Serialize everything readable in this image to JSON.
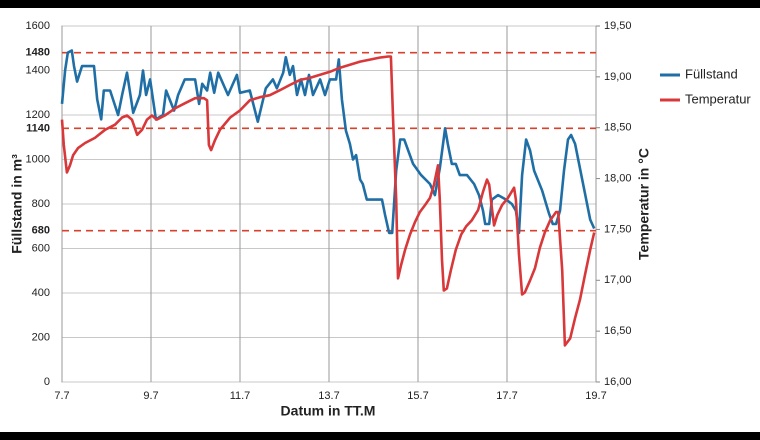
{
  "chart_data": {
    "type": "line",
    "x_label": "Datum in TT.M",
    "y_label": "Füllstand in m³",
    "y2_label": "Temperatur in °C",
    "xlim": [
      7,
      19
    ],
    "xticks": [
      {
        "value": 7,
        "label": "7.7"
      },
      {
        "value": 9,
        "label": "9.7"
      },
      {
        "value": 11,
        "label": "11.7"
      },
      {
        "value": 13,
        "label": "13.7"
      },
      {
        "value": 15,
        "label": "15.7"
      },
      {
        "value": 17,
        "label": "17.7"
      },
      {
        "value": 19,
        "label": "19.7"
      }
    ],
    "ylim": [
      0,
      1600
    ],
    "yticks": [
      0,
      200,
      400,
      600,
      800,
      1000,
      1200,
      1400,
      1600
    ],
    "y2lim": [
      16,
      19.5
    ],
    "y2ticks": [
      {
        "value": 16,
        "label": "16,00"
      },
      {
        "value": 16.5,
        "label": "16,50"
      },
      {
        "value": 17,
        "label": "17,00"
      },
      {
        "value": 17.5,
        "label": "17,50"
      },
      {
        "value": 18,
        "label": "18,00"
      },
      {
        "value": 18.5,
        "label": "18,50"
      },
      {
        "value": 19,
        "label": "19,00"
      },
      {
        "value": 19.5,
        "label": "19,50"
      }
    ],
    "reference_lines": [
      680,
      1140,
      1480
    ],
    "reference_color": "#d9412b",
    "grid": true,
    "legend": "right",
    "series": [
      {
        "name": "Füllstand",
        "color": "#1f6fa6",
        "x": [
          7.0,
          7.07,
          7.13,
          7.22,
          7.27,
          7.34,
          7.45,
          7.72,
          7.79,
          7.88,
          7.94,
          8.08,
          8.26,
          8.35,
          8.46,
          8.6,
          8.75,
          8.82,
          8.89,
          8.98,
          9.11,
          9.27,
          9.34,
          9.52,
          9.61,
          9.76,
          9.99,
          10.08,
          10.15,
          10.26,
          10.33,
          10.42,
          10.51,
          10.73,
          10.93,
          11.0,
          11.22,
          11.4,
          11.58,
          11.74,
          11.83,
          11.97,
          12.03,
          12.12,
          12.19,
          12.28,
          12.37,
          12.46,
          12.55,
          12.64,
          12.8,
          12.91,
          13.02,
          13.16,
          13.22,
          13.29,
          13.38,
          13.47,
          13.54,
          13.61,
          13.7,
          13.76,
          13.85,
          14.06,
          14.19,
          14.26,
          14.35,
          14.42,
          14.51,
          14.6,
          14.69,
          14.89,
          15.07,
          15.27,
          15.38,
          15.49,
          15.61,
          15.67,
          15.76,
          15.85,
          15.94,
          16.1,
          16.26,
          16.37,
          16.46,
          16.51,
          16.6,
          16.66,
          16.8,
          16.98,
          17.11,
          17.2,
          17.27,
          17.34,
          17.43,
          17.52,
          17.61,
          17.79,
          17.94,
          18.03,
          18.1,
          18.19,
          18.28,
          18.37,
          18.44,
          18.53,
          18.69,
          18.87,
          18.96
        ],
        "values": [
          1250,
          1400,
          1480,
          1490,
          1420,
          1350,
          1420,
          1420,
          1270,
          1180,
          1310,
          1310,
          1200,
          1290,
          1390,
          1210,
          1290,
          1400,
          1290,
          1360,
          1180,
          1200,
          1310,
          1220,
          1290,
          1360,
          1360,
          1250,
          1340,
          1310,
          1390,
          1300,
          1390,
          1290,
          1380,
          1300,
          1310,
          1170,
          1320,
          1360,
          1320,
          1390,
          1460,
          1380,
          1420,
          1290,
          1360,
          1290,
          1380,
          1290,
          1360,
          1290,
          1360,
          1360,
          1450,
          1270,
          1130,
          1070,
          1000,
          1020,
          910,
          890,
          820,
          820,
          820,
          750,
          670,
          670,
          950,
          1090,
          1090,
          980,
          930,
          890,
          840,
          960,
          1140,
          1070,
          980,
          980,
          930,
          930,
          890,
          840,
          770,
          710,
          710,
          820,
          840,
          820,
          800,
          770,
          670,
          930,
          1090,
          1040,
          950,
          860,
          760,
          710,
          710,
          770,
          950,
          1090,
          1110,
          1070,
          910,
          730,
          690
        ]
      },
      {
        "name": "Temperatur",
        "color": "#d9383a",
        "axis": "y2",
        "x": [
          7.0,
          7.04,
          7.11,
          7.18,
          7.25,
          7.36,
          7.52,
          7.74,
          7.97,
          8.19,
          8.35,
          8.46,
          8.57,
          8.69,
          8.8,
          8.91,
          9.02,
          9.13,
          9.31,
          9.54,
          9.76,
          9.99,
          10.19,
          10.26,
          10.3,
          10.35,
          10.44,
          10.55,
          10.78,
          11.0,
          11.22,
          11.45,
          11.67,
          11.9,
          12.12,
          12.35,
          12.57,
          12.8,
          13.02,
          13.25,
          13.47,
          13.7,
          13.92,
          14.15,
          14.33,
          14.39,
          14.44,
          14.51,
          14.55,
          14.62,
          14.71,
          14.82,
          14.93,
          15.04,
          15.16,
          15.27,
          15.36,
          15.45,
          15.49,
          15.54,
          15.58,
          15.65,
          15.74,
          15.85,
          15.97,
          16.08,
          16.21,
          16.35,
          16.46,
          16.55,
          16.6,
          16.66,
          16.71,
          16.78,
          16.89,
          17.02,
          17.16,
          17.2,
          17.27,
          17.34,
          17.4,
          17.52,
          17.63,
          17.74,
          17.85,
          17.97,
          18.1,
          18.15,
          18.24,
          18.3,
          18.42,
          18.53,
          18.64,
          18.75,
          18.87,
          18.96
        ],
        "values": [
          18.58,
          18.33,
          18.06,
          18.13,
          18.23,
          18.3,
          18.35,
          18.4,
          18.48,
          18.53,
          18.6,
          18.62,
          18.58,
          18.43,
          18.48,
          18.58,
          18.62,
          18.58,
          18.62,
          18.69,
          18.74,
          18.79,
          18.79,
          18.77,
          18.33,
          18.28,
          18.38,
          18.48,
          18.6,
          18.67,
          18.77,
          18.8,
          18.82,
          18.87,
          18.92,
          18.97,
          18.99,
          19.02,
          19.05,
          19.09,
          19.12,
          19.15,
          19.17,
          19.19,
          19.2,
          19.2,
          18.58,
          17.79,
          17.02,
          17.15,
          17.3,
          17.45,
          17.57,
          17.67,
          17.74,
          17.81,
          17.94,
          18.13,
          17.79,
          17.2,
          16.9,
          16.92,
          17.1,
          17.3,
          17.45,
          17.53,
          17.59,
          17.69,
          17.87,
          17.99,
          17.94,
          17.71,
          17.54,
          17.64,
          17.74,
          17.81,
          17.91,
          17.79,
          17.25,
          16.86,
          16.88,
          17.0,
          17.12,
          17.32,
          17.47,
          17.59,
          17.67,
          17.67,
          17.1,
          16.36,
          16.43,
          16.63,
          16.81,
          17.05,
          17.3,
          17.47
        ]
      }
    ]
  }
}
